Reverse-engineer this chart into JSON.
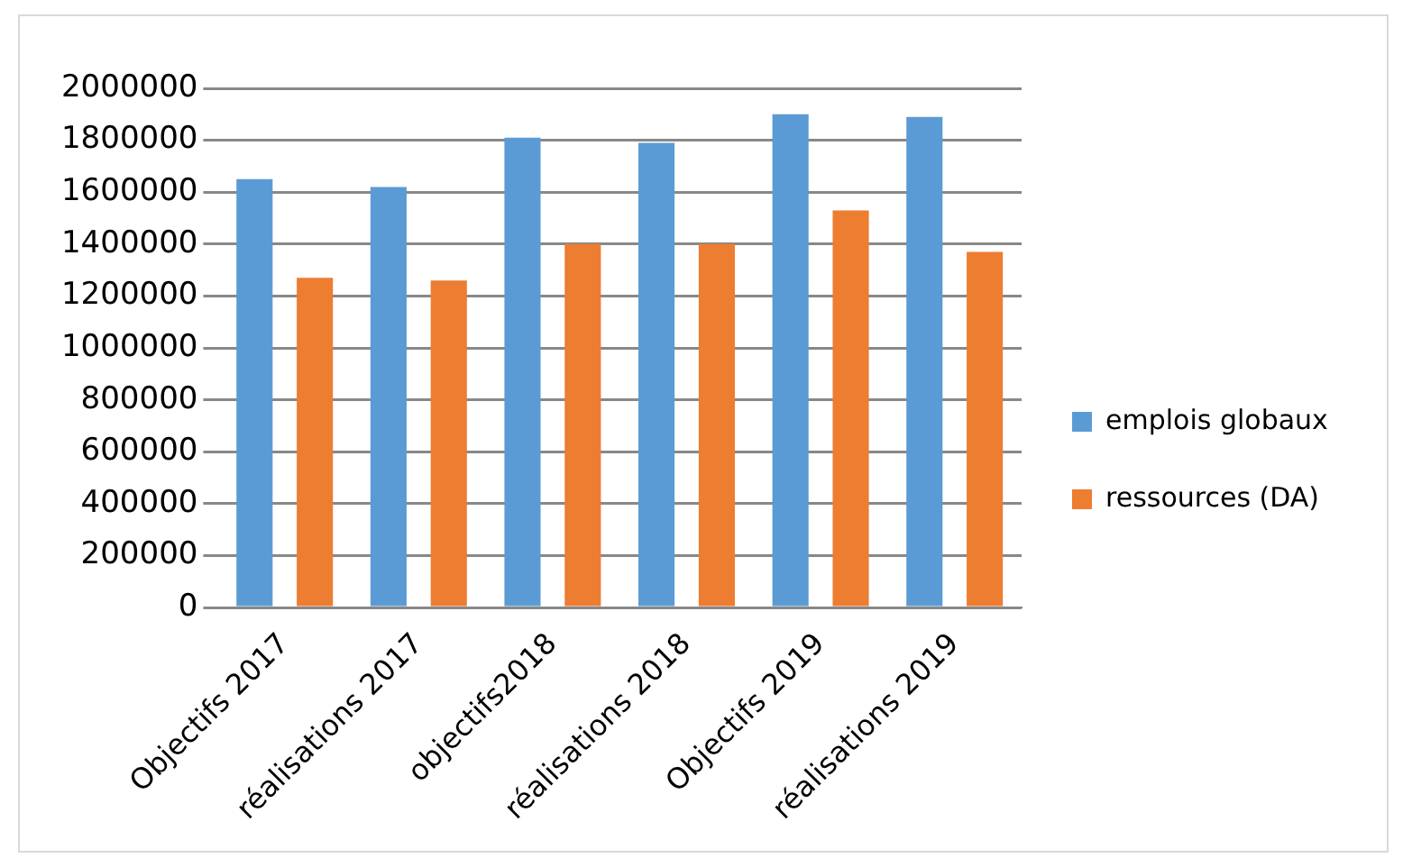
{
  "chart_data": {
    "type": "bar",
    "categories": [
      "Objectifs 2017",
      "réalisations 2017",
      "objectifs2018",
      "réalisations 2018",
      "Objectifs 2019",
      "réalisations 2019"
    ],
    "series": [
      {
        "name": "emplois globaux",
        "color": "#5b9bd5",
        "values": [
          1650000,
          1620000,
          1810000,
          1790000,
          1900000,
          1890000
        ]
      },
      {
        "name": "ressources (DA)",
        "color": "#ed7d31",
        "values": [
          1270000,
          1260000,
          1400000,
          1400000,
          1530000,
          1370000
        ]
      }
    ],
    "ylim": [
      0,
      2000000
    ],
    "yticks": [
      0,
      200000,
      400000,
      600000,
      800000,
      1000000,
      1200000,
      1400000,
      1600000,
      1800000,
      2000000
    ],
    "grid": "y",
    "legend": "right"
  }
}
